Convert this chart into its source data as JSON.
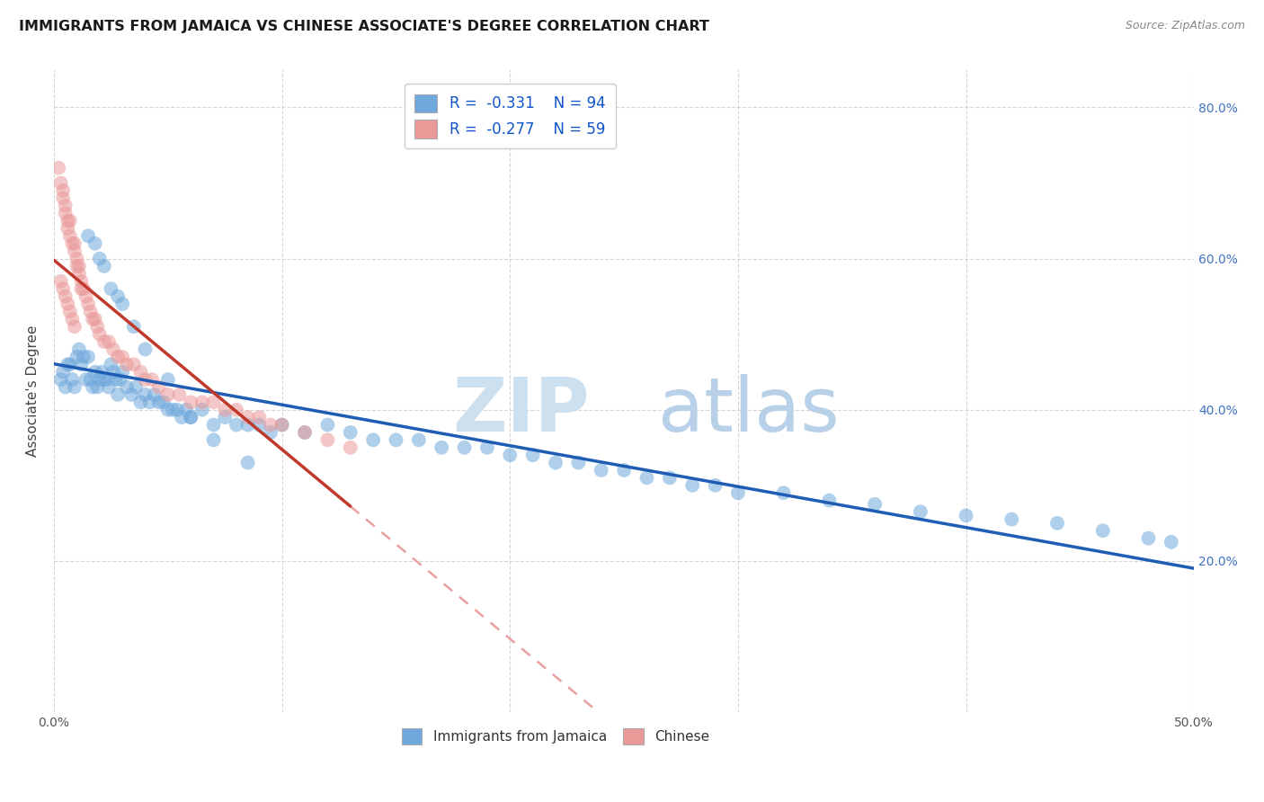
{
  "title": "IMMIGRANTS FROM JAMAICA VS CHINESE ASSOCIATE'S DEGREE CORRELATION CHART",
  "source": "Source: ZipAtlas.com",
  "ylabel": "Associate's Degree",
  "xmin": 0.0,
  "xmax": 0.5,
  "ymin": 0.0,
  "ymax": 0.85,
  "color_blue": "#6fa8dc",
  "color_pink": "#ea9999",
  "trendline_blue": "#1f5db5",
  "trendline_pink": "#c0392b",
  "trendline_dashed_color": "#e8a0a0",
  "jamaica_x": [
    0.003,
    0.004,
    0.005,
    0.006,
    0.007,
    0.008,
    0.009,
    0.01,
    0.011,
    0.012,
    0.013,
    0.014,
    0.015,
    0.016,
    0.017,
    0.018,
    0.019,
    0.02,
    0.021,
    0.022,
    0.023,
    0.024,
    0.025,
    0.026,
    0.027,
    0.028,
    0.029,
    0.03,
    0.032,
    0.034,
    0.036,
    0.038,
    0.04,
    0.042,
    0.044,
    0.046,
    0.048,
    0.05,
    0.052,
    0.054,
    0.056,
    0.058,
    0.06,
    0.065,
    0.07,
    0.075,
    0.08,
    0.085,
    0.09,
    0.095,
    0.1,
    0.11,
    0.12,
    0.13,
    0.14,
    0.15,
    0.16,
    0.17,
    0.18,
    0.19,
    0.2,
    0.21,
    0.22,
    0.23,
    0.24,
    0.25,
    0.26,
    0.27,
    0.28,
    0.29,
    0.3,
    0.32,
    0.34,
    0.36,
    0.38,
    0.4,
    0.42,
    0.44,
    0.46,
    0.48,
    0.015,
    0.018,
    0.02,
    0.022,
    0.025,
    0.028,
    0.03,
    0.035,
    0.04,
    0.05,
    0.06,
    0.07,
    0.085,
    0.49
  ],
  "jamaica_y": [
    0.44,
    0.45,
    0.43,
    0.46,
    0.46,
    0.44,
    0.43,
    0.47,
    0.48,
    0.46,
    0.47,
    0.44,
    0.47,
    0.44,
    0.43,
    0.45,
    0.43,
    0.44,
    0.45,
    0.44,
    0.44,
    0.43,
    0.46,
    0.45,
    0.44,
    0.42,
    0.44,
    0.45,
    0.43,
    0.42,
    0.43,
    0.41,
    0.42,
    0.41,
    0.42,
    0.41,
    0.41,
    0.4,
    0.4,
    0.4,
    0.39,
    0.4,
    0.39,
    0.4,
    0.38,
    0.39,
    0.38,
    0.38,
    0.38,
    0.37,
    0.38,
    0.37,
    0.38,
    0.37,
    0.36,
    0.36,
    0.36,
    0.35,
    0.35,
    0.35,
    0.34,
    0.34,
    0.33,
    0.33,
    0.32,
    0.32,
    0.31,
    0.31,
    0.3,
    0.3,
    0.29,
    0.29,
    0.28,
    0.275,
    0.265,
    0.26,
    0.255,
    0.25,
    0.24,
    0.23,
    0.63,
    0.62,
    0.6,
    0.59,
    0.56,
    0.55,
    0.54,
    0.51,
    0.48,
    0.44,
    0.39,
    0.36,
    0.33,
    0.225
  ],
  "chinese_x": [
    0.002,
    0.003,
    0.004,
    0.004,
    0.005,
    0.005,
    0.006,
    0.006,
    0.007,
    0.007,
    0.008,
    0.009,
    0.009,
    0.01,
    0.01,
    0.011,
    0.011,
    0.012,
    0.012,
    0.013,
    0.014,
    0.015,
    0.016,
    0.017,
    0.018,
    0.019,
    0.02,
    0.022,
    0.024,
    0.026,
    0.028,
    0.03,
    0.032,
    0.035,
    0.038,
    0.04,
    0.043,
    0.046,
    0.05,
    0.055,
    0.06,
    0.065,
    0.07,
    0.075,
    0.08,
    0.085,
    0.09,
    0.095,
    0.1,
    0.11,
    0.12,
    0.13,
    0.003,
    0.004,
    0.005,
    0.006,
    0.007,
    0.008,
    0.009
  ],
  "chinese_y": [
    0.72,
    0.7,
    0.69,
    0.68,
    0.67,
    0.66,
    0.65,
    0.64,
    0.65,
    0.63,
    0.62,
    0.62,
    0.61,
    0.6,
    0.59,
    0.59,
    0.58,
    0.57,
    0.56,
    0.56,
    0.55,
    0.54,
    0.53,
    0.52,
    0.52,
    0.51,
    0.5,
    0.49,
    0.49,
    0.48,
    0.47,
    0.47,
    0.46,
    0.46,
    0.45,
    0.44,
    0.44,
    0.43,
    0.42,
    0.42,
    0.41,
    0.41,
    0.41,
    0.4,
    0.4,
    0.39,
    0.39,
    0.38,
    0.38,
    0.37,
    0.36,
    0.35,
    0.57,
    0.56,
    0.55,
    0.54,
    0.53,
    0.52,
    0.51
  ]
}
